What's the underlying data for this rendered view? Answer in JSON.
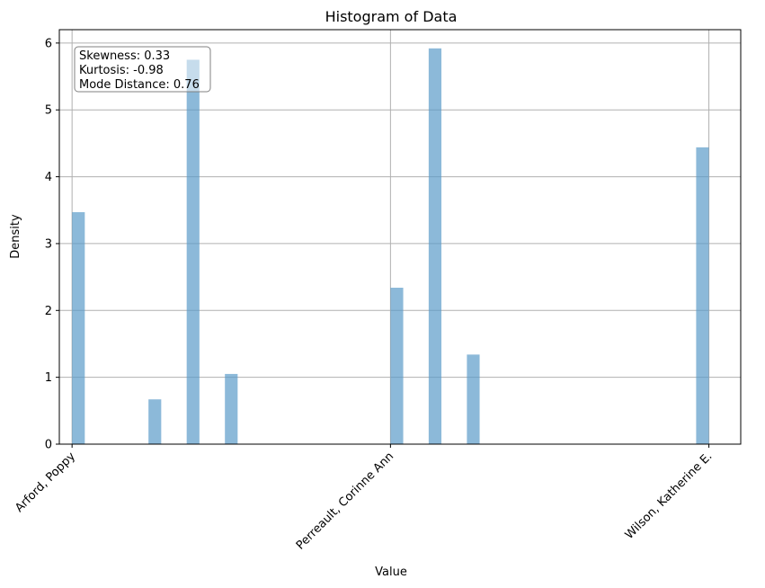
{
  "chart_data": {
    "type": "bar",
    "title": "Histogram of Data",
    "xlabel": "Value",
    "ylabel": "Density",
    "ylim": [
      0,
      6.2
    ],
    "y_ticks": [
      0,
      1,
      2,
      3,
      4,
      5,
      6
    ],
    "x_ticks": [
      {
        "value": 0,
        "label": "Arford, Poppy"
      },
      {
        "value": 1,
        "label": "Perreault, Corinne Ann"
      },
      {
        "value": 2,
        "label": "Wilson, Katherine E."
      }
    ],
    "xlim": [
      -0.04,
      2.1
    ],
    "bin_width": 0.04,
    "bars": [
      {
        "x": 0.0,
        "height": 3.47
      },
      {
        "x": 0.24,
        "height": 0.67
      },
      {
        "x": 0.36,
        "height": 5.75
      },
      {
        "x": 0.48,
        "height": 1.05
      },
      {
        "x": 1.0,
        "height": 2.34
      },
      {
        "x": 1.12,
        "height": 5.92
      },
      {
        "x": 1.24,
        "height": 1.34
      },
      {
        "x": 1.96,
        "height": 4.44
      }
    ],
    "bar_color": "#5b9bc9",
    "bar_opacity": 0.7,
    "grid": true,
    "annotation": {
      "lines": [
        "Skewness: 0.33",
        "Kurtosis: -0.98",
        "Mode Distance: 0.76"
      ],
      "placement": "top-left"
    }
  }
}
